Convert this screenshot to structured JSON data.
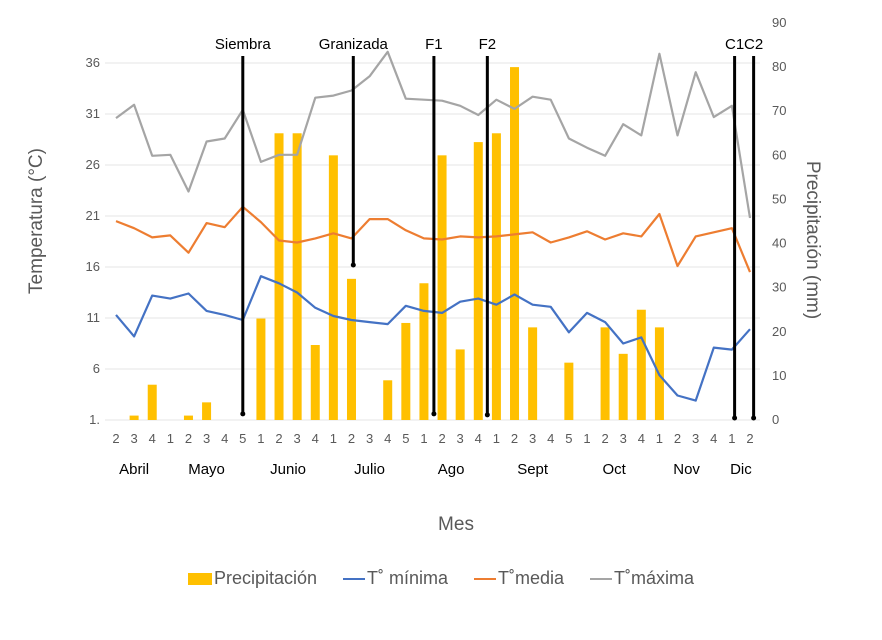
{
  "chart_data": {
    "type": "bar+line",
    "title": "",
    "xlabel": "Mes",
    "ylabel": "Temperatura (°C)",
    "y2label": "Precipitación (mm)",
    "ylim": [
      1,
      36
    ],
    "y_ticks": [
      "36",
      "31",
      "26",
      "21",
      "16",
      "11",
      "6",
      "1."
    ],
    "y_tick_values": [
      36,
      31,
      26,
      21,
      16,
      11,
      6,
      1
    ],
    "y2lim": [
      0,
      90
    ],
    "y2_ticks": [
      "90",
      "80",
      "70",
      "60",
      "50",
      "40",
      "30",
      "20",
      "10",
      "0"
    ],
    "y2_tick_values": [
      90,
      80,
      70,
      60,
      50,
      40,
      30,
      20,
      10,
      0
    ],
    "grid": true,
    "categories": [
      "2",
      "3",
      "4",
      "1",
      "2",
      "3",
      "4",
      "5",
      "1",
      "2",
      "3",
      "4",
      "1",
      "2",
      "3",
      "4",
      "5",
      "1",
      "2",
      "3",
      "4",
      "1",
      "2",
      "3",
      "4",
      "5",
      "1",
      "2",
      "3",
      "4",
      "1",
      "2",
      "3",
      "4",
      "1",
      "2"
    ],
    "months": [
      {
        "label": "Abril",
        "start": 0,
        "end": 2
      },
      {
        "label": "Mayo",
        "start": 3,
        "end": 7
      },
      {
        "label": "Junio",
        "start": 8,
        "end": 11
      },
      {
        "label": "Julio",
        "start": 12,
        "end": 16
      },
      {
        "label": "Ago",
        "start": 17,
        "end": 20
      },
      {
        "label": "Sept",
        "start": 21,
        "end": 25
      },
      {
        "label": "Oct",
        "start": 26,
        "end": 29
      },
      {
        "label": "Nov",
        "start": 30,
        "end": 33
      },
      {
        "label": "Dic",
        "start": 34,
        "end": 35
      }
    ],
    "series": [
      {
        "name": "Precipitación",
        "type": "bar",
        "axis": "right",
        "color": "#FFC000",
        "values": [
          0,
          1,
          8,
          0,
          1,
          4,
          0,
          0,
          23,
          65,
          65,
          17,
          60,
          32,
          0,
          9,
          22,
          31,
          60,
          16,
          63,
          65,
          80,
          21,
          0,
          13,
          0,
          21,
          15,
          25,
          21,
          0,
          0,
          0,
          0,
          0
        ]
      },
      {
        "name": "T˚ mínima",
        "type": "line",
        "axis": "left",
        "color": "#4472C4",
        "values": [
          11.3,
          9.2,
          13.2,
          12.9,
          13.4,
          11.7,
          11.3,
          10.8,
          15.1,
          14.4,
          13.5,
          12.0,
          11.2,
          10.8,
          10.6,
          10.4,
          12.2,
          11.7,
          11.5,
          12.6,
          12.9,
          12.3,
          13.3,
          12.3,
          12.1,
          9.6,
          11.5,
          10.6,
          8.5,
          9.1,
          5.4,
          3.4,
          2.9,
          8.1,
          7.9,
          9.9
        ]
      },
      {
        "name": "T˚media",
        "type": "line",
        "axis": "left",
        "color": "#ED7D31",
        "values": [
          20.5,
          19.8,
          18.9,
          19.1,
          17.4,
          20.3,
          19.9,
          21.9,
          20.4,
          18.6,
          18.4,
          18.8,
          19.3,
          18.8,
          20.7,
          20.7,
          19.6,
          18.8,
          18.7,
          19.0,
          18.9,
          19.0,
          19.2,
          19.4,
          18.4,
          18.9,
          19.5,
          18.7,
          19.3,
          19.0,
          21.2,
          16.1,
          19.0,
          19.4,
          19.8,
          15.5
        ]
      },
      {
        "name": "T˚máxima",
        "type": "line",
        "axis": "left",
        "color": "#A5A5A5",
        "values": [
          30.6,
          31.9,
          26.9,
          27.0,
          23.4,
          28.3,
          28.6,
          31.4,
          26.3,
          27.0,
          27.0,
          32.6,
          32.8,
          33.3,
          34.7,
          37.1,
          32.5,
          32.4,
          32.3,
          31.8,
          30.9,
          32.4,
          31.5,
          32.7,
          32.4,
          28.6,
          27.7,
          26.9,
          30.0,
          28.9,
          36.9,
          28.9,
          35.1,
          30.7,
          31.8,
          20.8
        ]
      }
    ],
    "events": [
      {
        "label": "Siembra",
        "index": 7.0,
        "bottom_temp": 1.6
      },
      {
        "label": "Granizada",
        "index": 13.1,
        "bottom_temp": 16.2
      },
      {
        "label": "F1",
        "index": 17.55,
        "bottom_temp": 1.6
      },
      {
        "label": "F2",
        "index": 20.5,
        "bottom_temp": 1.5
      },
      {
        "label": "C1",
        "index": 34.15,
        "bottom_temp": 1.2
      },
      {
        "label": "C2",
        "index": 35.2,
        "bottom_temp": 1.2
      }
    ],
    "legend_position": "bottom",
    "legend": [
      "Precipitación",
      "T˚ mínima",
      "T˚media",
      "T˚máxima"
    ]
  }
}
